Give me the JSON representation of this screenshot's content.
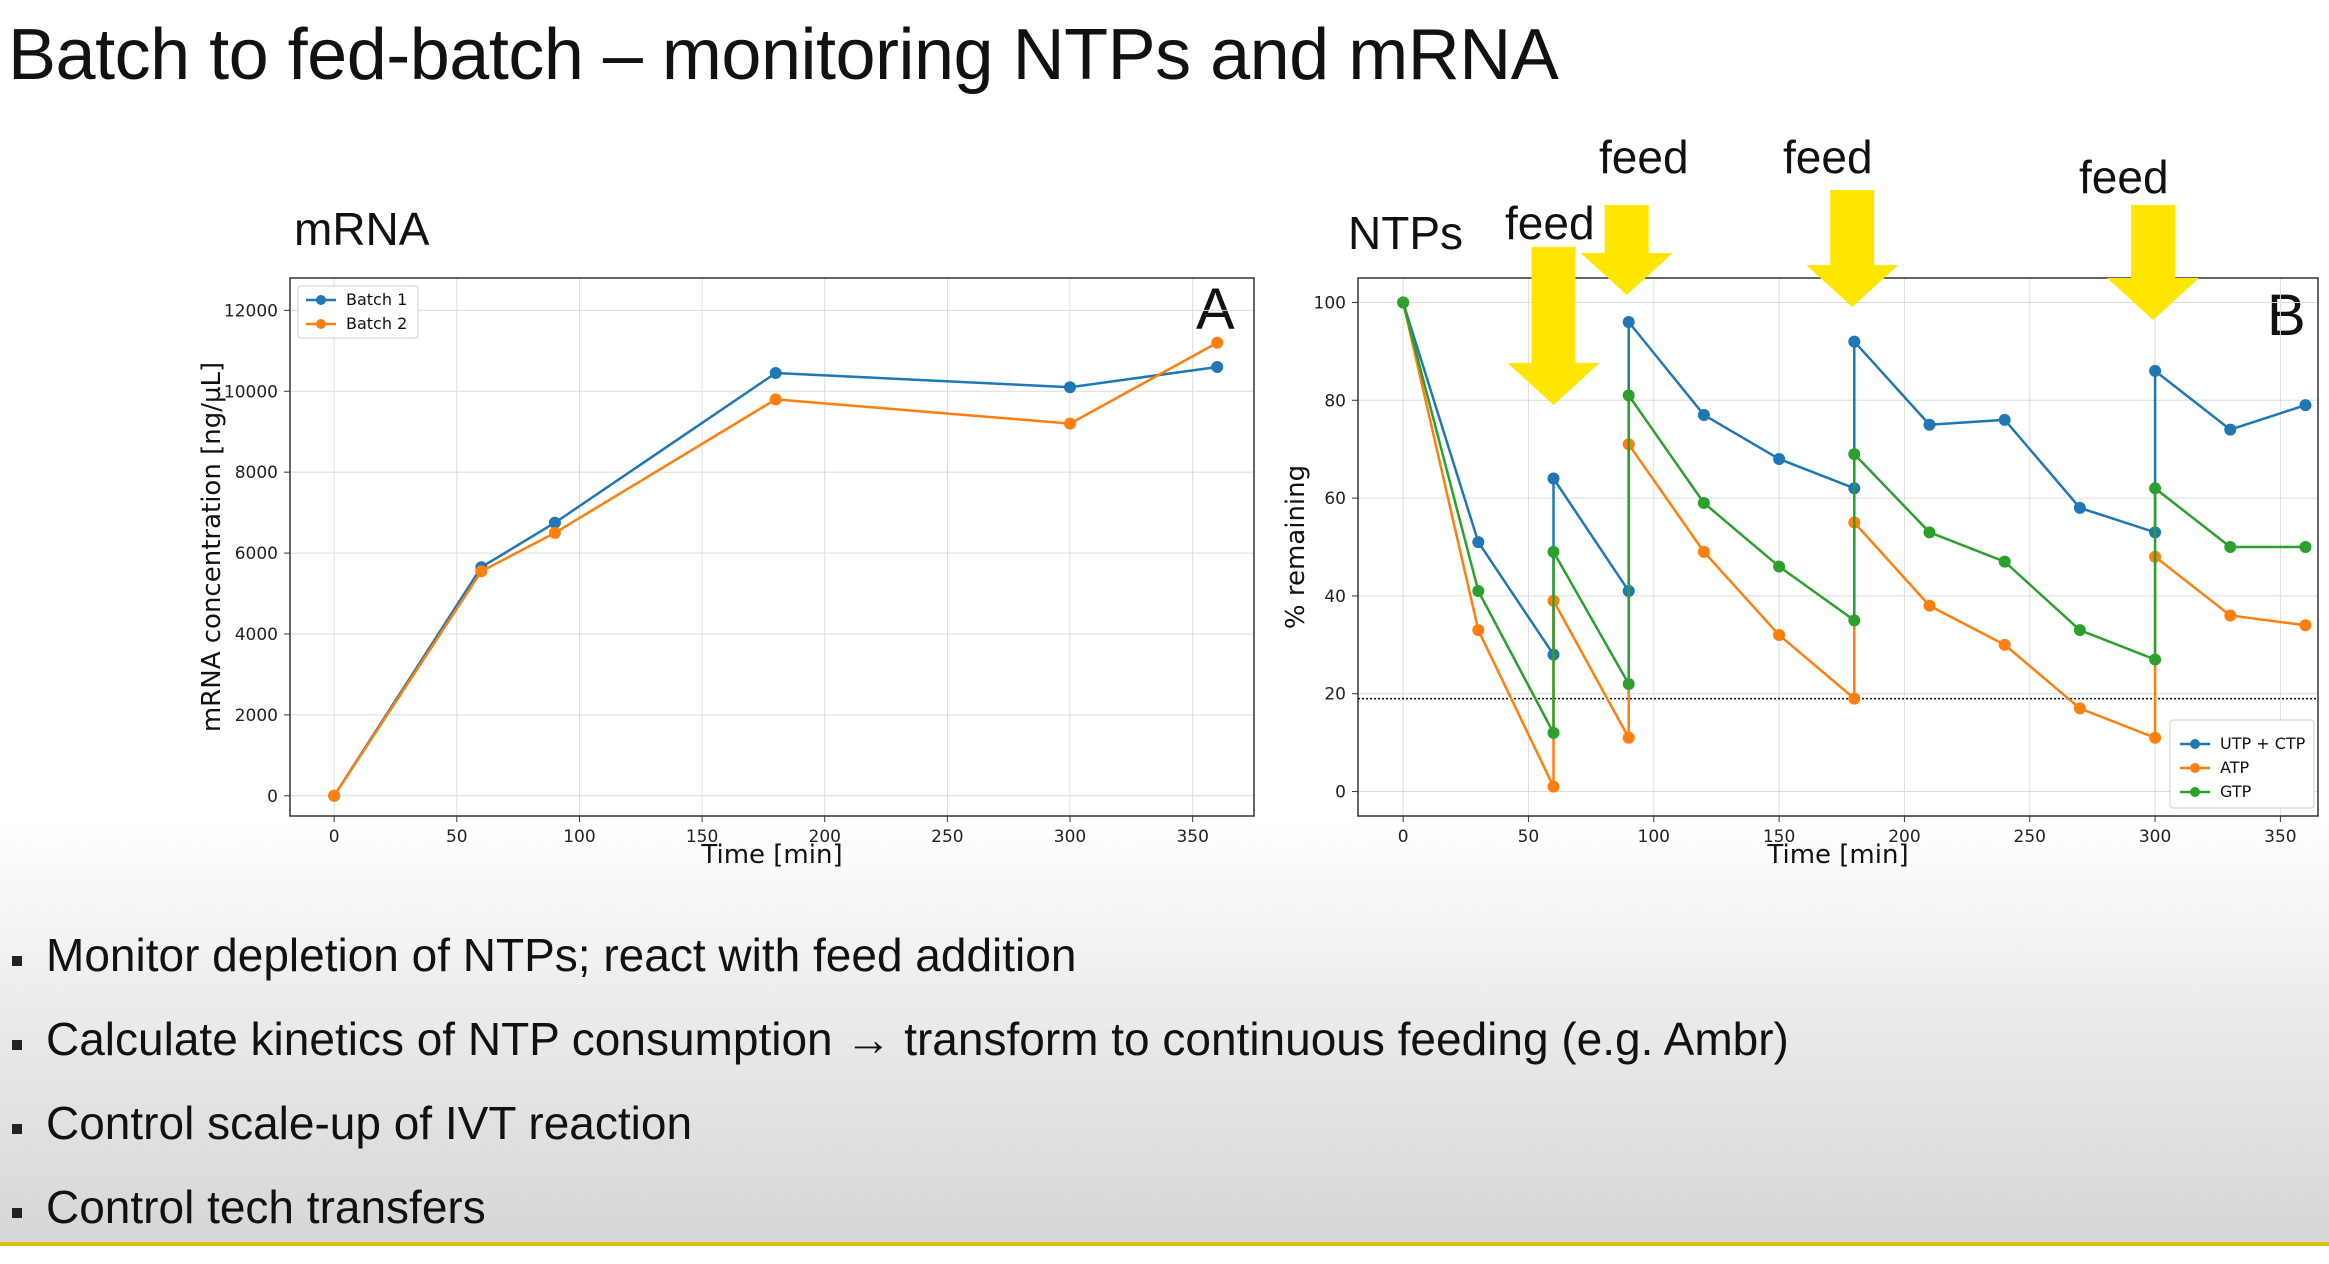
{
  "title": "Batch to fed-batch – monitoring NTPs and mRNA",
  "panels": {
    "left_label": "mRNA",
    "right_label": "NTPs",
    "left_letter": "A",
    "right_letter": "B",
    "feed_label": "feed"
  },
  "bullets": [
    "Monitor depletion of NTPs; react with feed addition",
    "Calculate kinetics of NTP consumption → transform to continuous feeding (e.g. Ambr)",
    "Control scale-up of IVT reaction",
    "Control tech transfers"
  ],
  "colors": {
    "blue": "#1f77b4",
    "orange": "#ff7f0e",
    "green": "#2ca02c",
    "feed_arrow": "#ffe600",
    "footer_rule": "#d8c20a"
  },
  "chart_data": [
    {
      "type": "line",
      "xlabel": "Time [min]",
      "ylabel": "mRNA concentration [ng/µL]",
      "xlim": [
        -18,
        375
      ],
      "ylim": [
        -500,
        12800
      ],
      "xticks": [
        0,
        50,
        100,
        150,
        200,
        250,
        300,
        350
      ],
      "yticks": [
        0,
        2000,
        4000,
        6000,
        8000,
        10000,
        12000
      ],
      "grid": true,
      "legend_position": "top-left",
      "series": [
        {
          "name": "Batch 1",
          "color": "#1f77b4",
          "x": [
            0,
            60,
            90,
            180,
            300,
            360
          ],
          "y": [
            0,
            5650,
            6750,
            10450,
            10100,
            10600
          ]
        },
        {
          "name": "Batch 2",
          "color": "#ff7f0e",
          "x": [
            0,
            60,
            90,
            180,
            300,
            360
          ],
          "y": [
            0,
            5550,
            6500,
            9800,
            9200,
            11200
          ]
        }
      ]
    },
    {
      "type": "line",
      "xlabel": "Time [min]",
      "ylabel": "% remaining",
      "xlim": [
        -18,
        365
      ],
      "ylim": [
        -5,
        105
      ],
      "xticks": [
        0,
        50,
        100,
        150,
        200,
        250,
        300,
        350
      ],
      "yticks": [
        0,
        20,
        40,
        60,
        80,
        100
      ],
      "grid": true,
      "legend_position": "bottom-right",
      "reference_line_y": 19,
      "feed_times": [
        60,
        90,
        180,
        300
      ],
      "series": [
        {
          "name": "UTP + CTP",
          "color": "#1f77b4",
          "x": [
            0,
            30,
            60,
            60,
            90,
            90,
            120,
            150,
            180,
            180,
            210,
            240,
            270,
            300,
            300,
            330,
            360
          ],
          "y": [
            100,
            51,
            28,
            64,
            41,
            96,
            77,
            68,
            62,
            92,
            75,
            76,
            58,
            53,
            86,
            74,
            79
          ]
        },
        {
          "name": "ATP",
          "color": "#ff7f0e",
          "x": [
            0,
            30,
            60,
            60,
            90,
            90,
            120,
            150,
            180,
            180,
            210,
            240,
            270,
            300,
            300,
            330,
            360
          ],
          "y": [
            100,
            33,
            1,
            39,
            11,
            71,
            49,
            32,
            19,
            55,
            38,
            30,
            17,
            11,
            48,
            36,
            34
          ]
        },
        {
          "name": "GTP",
          "color": "#2ca02c",
          "x": [
            0,
            30,
            60,
            60,
            90,
            90,
            120,
            150,
            180,
            180,
            210,
            240,
            270,
            300,
            300,
            330,
            360
          ],
          "y": [
            100,
            41,
            12,
            49,
            22,
            81,
            59,
            46,
            35,
            69,
            53,
            47,
            33,
            27,
            62,
            50,
            50
          ]
        }
      ]
    }
  ]
}
